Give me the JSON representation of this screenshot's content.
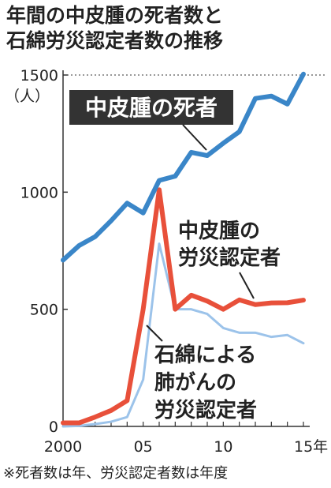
{
  "title_lines": [
    "年間の中皮腫の死者数と",
    "石綿労災認定者数の推移"
  ],
  "footnote": "※死者数は年、労災認定者数は年度",
  "colors": {
    "mesothelioma_deaths": "#3a86c8",
    "mesothelioma_certified": "#e8503a",
    "lung_cancer_certified": "#9cc3ea",
    "label_box": "#333333"
  },
  "chart_data": {
    "type": "line",
    "title": "年間の中皮腫の死者数と石綿労災認定者数の推移",
    "x": [
      2000,
      2001,
      2002,
      2003,
      2004,
      2005,
      2006,
      2007,
      2008,
      2009,
      2010,
      2011,
      2012,
      2013,
      2014,
      2015
    ],
    "x_tick_values": [
      2000,
      2005,
      2010,
      2015
    ],
    "x_tick_labels": [
      "2000",
      "05",
      "10",
      "15年"
    ],
    "ylim": [
      0,
      1500
    ],
    "y_ticks": [
      0,
      500,
      1000,
      1500
    ],
    "y_tick_labels": [
      "0",
      "500",
      "1000",
      "1500"
    ],
    "ylabel": "（人）",
    "grid": false,
    "reference_line_at": 1500,
    "series": [
      {
        "name": "中皮腫の死者",
        "label_lines": [
          "中皮腫の死者"
        ],
        "color": "#3a86c8",
        "values": [
          710,
          772,
          810,
          878,
          953,
          911,
          1050,
          1068,
          1170,
          1156,
          1209,
          1258,
          1400,
          1410,
          1376,
          1504
        ]
      },
      {
        "name": "中皮腫の労災認定者",
        "label_lines": [
          "中皮腫の",
          "労災認定者"
        ],
        "color": "#e8503a",
        "values": [
          15,
          15,
          40,
          68,
          110,
          500,
          1010,
          500,
          560,
          535,
          500,
          540,
          520,
          527,
          528,
          539
        ]
      },
      {
        "name": "石綿による肺がんの労災認定者",
        "label_lines": [
          "石綿による",
          "肺がんの",
          "労災認定者"
        ],
        "color": "#9cc3ea",
        "values": [
          0,
          2,
          10,
          20,
          40,
          200,
          780,
          500,
          500,
          480,
          420,
          400,
          400,
          382,
          390,
          355
        ]
      }
    ]
  }
}
